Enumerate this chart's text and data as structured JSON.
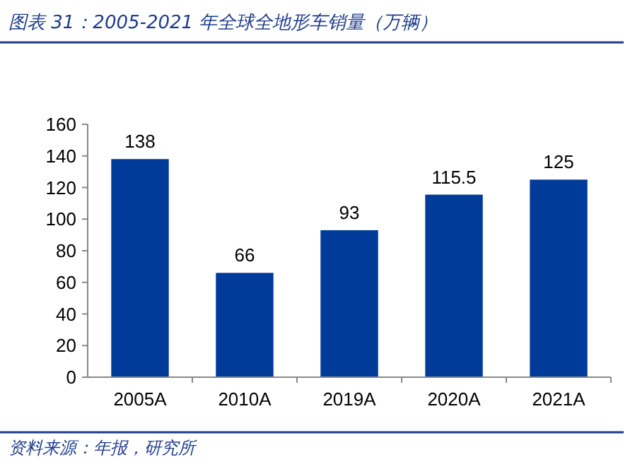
{
  "chart_data": {
    "type": "bar",
    "title": "图表 31：2005-2021 年全球全地形车销量（万辆）",
    "categories": [
      "2005A",
      "2010A",
      "2019A",
      "2020A",
      "2021A"
    ],
    "values": [
      138,
      66,
      93,
      115.5,
      125
    ],
    "color": "#003b9a",
    "ylim": [
      0,
      160
    ],
    "yticks": [
      0,
      20,
      40,
      60,
      80,
      100,
      120,
      140,
      160
    ],
    "data_labels": true,
    "grid": false,
    "annotations": [
      "资料来源：年报，研究所"
    ]
  }
}
